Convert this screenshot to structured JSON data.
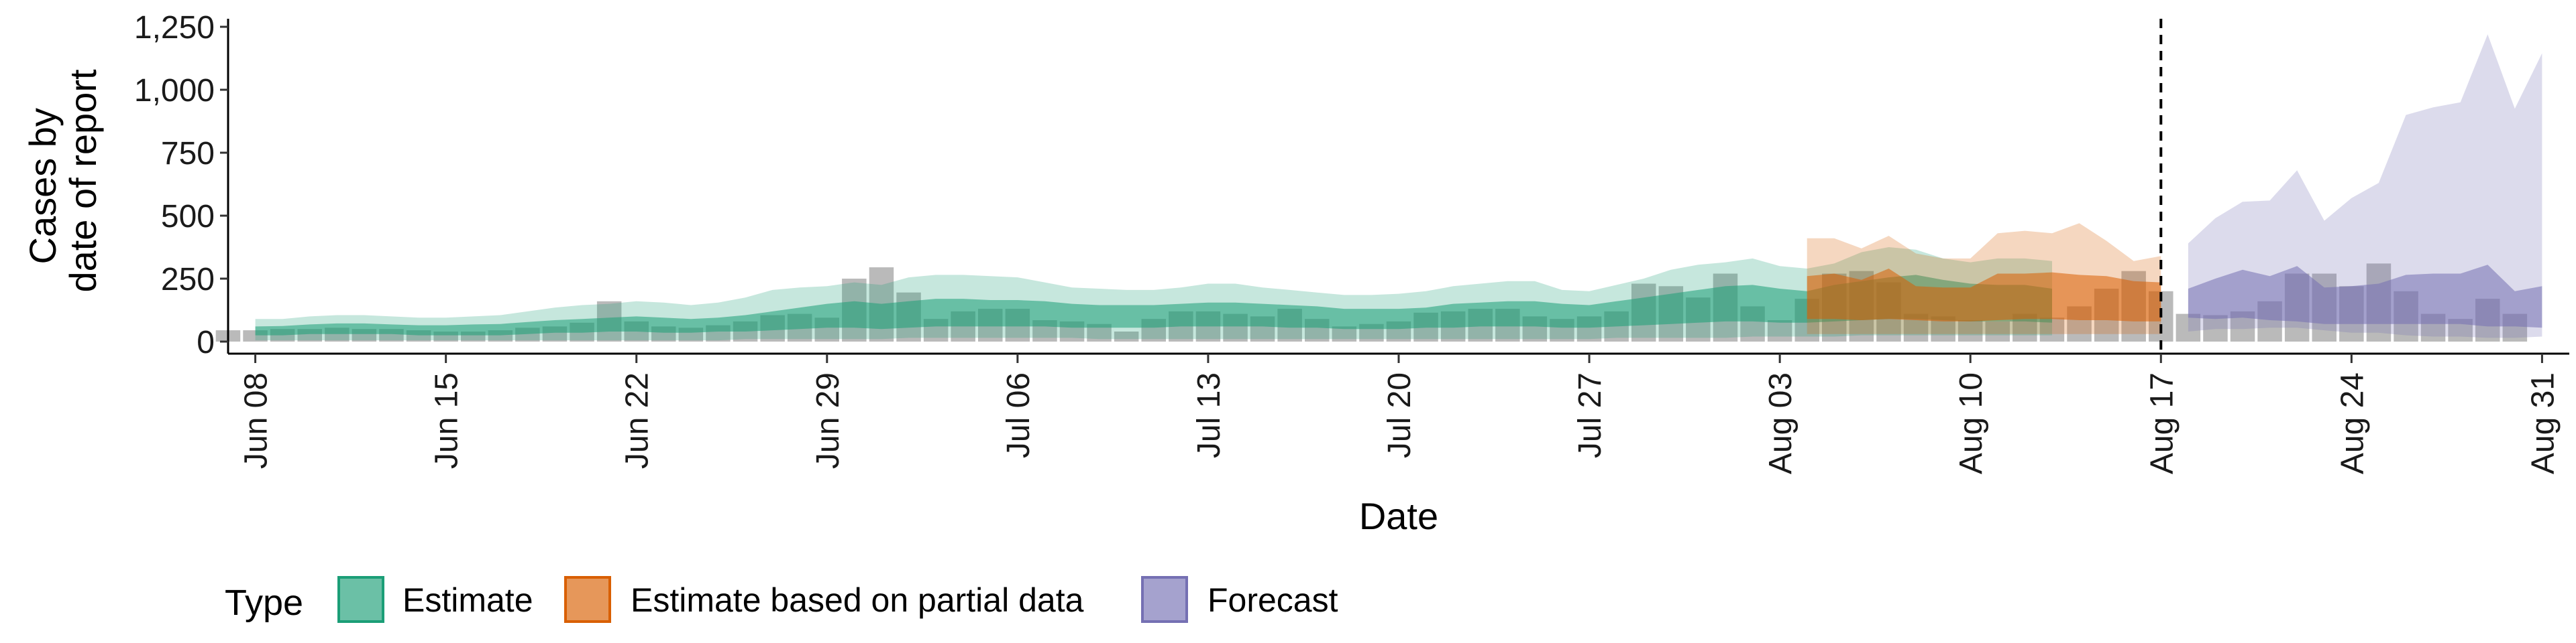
{
  "chart_data": {
    "type": "area",
    "xlabel": "Date",
    "ylabel_lines": [
      "Cases by",
      "date of report"
    ],
    "y_ticks": [
      0,
      250,
      500,
      750,
      1000,
      1250
    ],
    "y_tick_labels": [
      "0",
      "250",
      "500",
      "750",
      "1,000",
      "1,250"
    ],
    "ylim": [
      0,
      1250
    ],
    "x_ticks": [
      "2020-06-08",
      "2020-06-15",
      "2020-06-22",
      "2020-06-29",
      "2020-07-06",
      "2020-07-13",
      "2020-07-20",
      "2020-07-27",
      "2020-08-03",
      "2020-08-10",
      "2020-08-17",
      "2020-08-24",
      "2020-08-31"
    ],
    "x_tick_labels": [
      "Jun 08",
      "Jun 15",
      "Jun 22",
      "Jun 29",
      "Jul 06",
      "Jul 13",
      "Jul 20",
      "Jul 27",
      "Aug 03",
      "Aug 10",
      "Aug 17",
      "Aug 24",
      "Aug 31"
    ],
    "xlim": [
      "2020-06-07",
      "2020-09-01"
    ],
    "forecast_start": "2020-08-17",
    "legend": {
      "title": "Type",
      "position": "bottom",
      "items": [
        {
          "label": "Estimate",
          "fill": "#1b9e77",
          "stroke": "#1b9e77"
        },
        {
          "label": "Estimate based on partial data",
          "fill": "#d95f02",
          "stroke": "#d95f02"
        },
        {
          "label": "Forecast",
          "fill": "#7570b3",
          "stroke": "#7570b3"
        }
      ]
    },
    "observed_cases": {
      "start": "2020-06-07",
      "values": [
        45,
        45,
        50,
        50,
        55,
        50,
        50,
        45,
        40,
        40,
        45,
        55,
        60,
        75,
        160,
        80,
        60,
        55,
        65,
        80,
        105,
        110,
        95,
        250,
        295,
        195,
        90,
        120,
        130,
        130,
        85,
        80,
        70,
        40,
        90,
        120,
        120,
        110,
        100,
        130,
        90,
        60,
        70,
        80,
        115,
        120,
        130,
        130,
        100,
        90,
        100,
        120,
        230,
        220,
        175,
        270,
        140,
        85,
        170,
        270,
        280,
        235,
        110,
        100,
        85,
        80,
        110,
        95,
        140,
        210,
        280,
        200,
        110,
        105,
        120,
        160,
        270,
        270,
        220,
        310,
        200,
        110,
        90,
        170,
        110
      ]
    },
    "series": [
      {
        "name": "Estimate",
        "start": "2020-06-08",
        "outer_lower": [
          5,
          5,
          5,
          5,
          5,
          5,
          5,
          5,
          5,
          5,
          5,
          5,
          5,
          5,
          5,
          5,
          5,
          5,
          10,
          10,
          10,
          10,
          10,
          10,
          15,
          15,
          15,
          15,
          15,
          15,
          15,
          10,
          10,
          10,
          10,
          10,
          10,
          10,
          10,
          10,
          10,
          10,
          10,
          10,
          10,
          10,
          10,
          10,
          10,
          10,
          15,
          15,
          15,
          15,
          15,
          20,
          20,
          20,
          20,
          25,
          25,
          25,
          25,
          25,
          25,
          25,
          25
        ],
        "inner_lower": [
          25,
          25,
          30,
          30,
          30,
          30,
          25,
          25,
          25,
          25,
          30,
          35,
          35,
          40,
          40,
          35,
          35,
          40,
          40,
          45,
          50,
          55,
          55,
          50,
          55,
          60,
          60,
          60,
          60,
          60,
          55,
          55,
          55,
          55,
          60,
          60,
          60,
          60,
          55,
          55,
          50,
          50,
          50,
          55,
          55,
          60,
          60,
          60,
          55,
          55,
          60,
          65,
          70,
          75,
          80,
          80,
          75,
          75,
          80,
          85,
          90,
          90,
          85,
          80,
          80,
          80,
          75
        ],
        "median": [
          45,
          48,
          52,
          55,
          55,
          52,
          48,
          48,
          50,
          52,
          58,
          62,
          68,
          72,
          75,
          72,
          68,
          72,
          80,
          90,
          100,
          110,
          115,
          110,
          120,
          125,
          125,
          120,
          120,
          115,
          110,
          105,
          105,
          105,
          110,
          115,
          115,
          110,
          105,
          100,
          95,
          95,
          95,
          100,
          110,
          115,
          120,
          120,
          110,
          105,
          115,
          125,
          135,
          145,
          155,
          160,
          150,
          145,
          160,
          170,
          180,
          185,
          175,
          165,
          160,
          160,
          150
        ],
        "inner_upper": [
          60,
          62,
          68,
          72,
          72,
          68,
          65,
          65,
          68,
          70,
          78,
          85,
          90,
          95,
          100,
          95,
          90,
          95,
          105,
          120,
          135,
          150,
          160,
          150,
          160,
          170,
          170,
          165,
          165,
          160,
          150,
          145,
          145,
          145,
          150,
          155,
          155,
          150,
          145,
          140,
          130,
          130,
          130,
          135,
          150,
          155,
          160,
          160,
          150,
          145,
          160,
          175,
          190,
          205,
          220,
          225,
          210,
          200,
          225,
          240,
          255,
          265,
          245,
          230,
          225,
          225,
          210
        ],
        "outer_upper": [
          90,
          90,
          100,
          105,
          105,
          100,
          95,
          95,
          100,
          105,
          120,
          135,
          145,
          150,
          160,
          155,
          145,
          155,
          175,
          205,
          215,
          220,
          235,
          225,
          255,
          265,
          265,
          260,
          255,
          235,
          215,
          210,
          205,
          205,
          215,
          230,
          230,
          215,
          205,
          195,
          185,
          185,
          190,
          200,
          220,
          230,
          240,
          240,
          205,
          200,
          225,
          250,
          285,
          305,
          315,
          330,
          300,
          290,
          310,
          355,
          375,
          365,
          330,
          315,
          330,
          330,
          320
        ]
      },
      {
        "name": "Estimate based on partial data",
        "start": "2020-08-04",
        "outer_lower": [
          30,
          30,
          30,
          30,
          30,
          30,
          30,
          30,
          30,
          30,
          30,
          30,
          30,
          30
        ],
        "inner_lower": [
          90,
          90,
          85,
          90,
          85,
          80,
          80,
          85,
          90,
          90,
          85,
          85,
          80,
          80
        ],
        "median": [
          180,
          190,
          170,
          200,
          150,
          145,
          150,
          180,
          180,
          185,
          175,
          170,
          155,
          150
        ],
        "inner_upper": [
          260,
          270,
          245,
          290,
          220,
          215,
          215,
          270,
          270,
          275,
          265,
          260,
          240,
          235
        ],
        "outer_upper": [
          410,
          410,
          370,
          420,
          350,
          330,
          330,
          430,
          440,
          430,
          470,
          400,
          320,
          340
        ]
      },
      {
        "name": "Forecast",
        "start": "2020-08-18",
        "outer_lower": [
          40,
          50,
          50,
          55,
          55,
          45,
          35,
          35,
          25,
          20,
          20,
          15,
          15,
          20
        ],
        "inner_lower": [
          95,
          90,
          95,
          85,
          80,
          70,
          70,
          70,
          70,
          70,
          70,
          60,
          60,
          55
        ],
        "median": [
          150,
          165,
          170,
          160,
          170,
          135,
          140,
          150,
          170,
          170,
          170,
          165,
          150,
          145
        ],
        "inner_upper": [
          210,
          250,
          285,
          260,
          300,
          215,
          220,
          230,
          265,
          270,
          270,
          305,
          200,
          220
        ],
        "outer_upper": [
          390,
          490,
          555,
          560,
          680,
          480,
          570,
          630,
          900,
          930,
          950,
          1220,
          925,
          1145
        ]
      }
    ]
  }
}
